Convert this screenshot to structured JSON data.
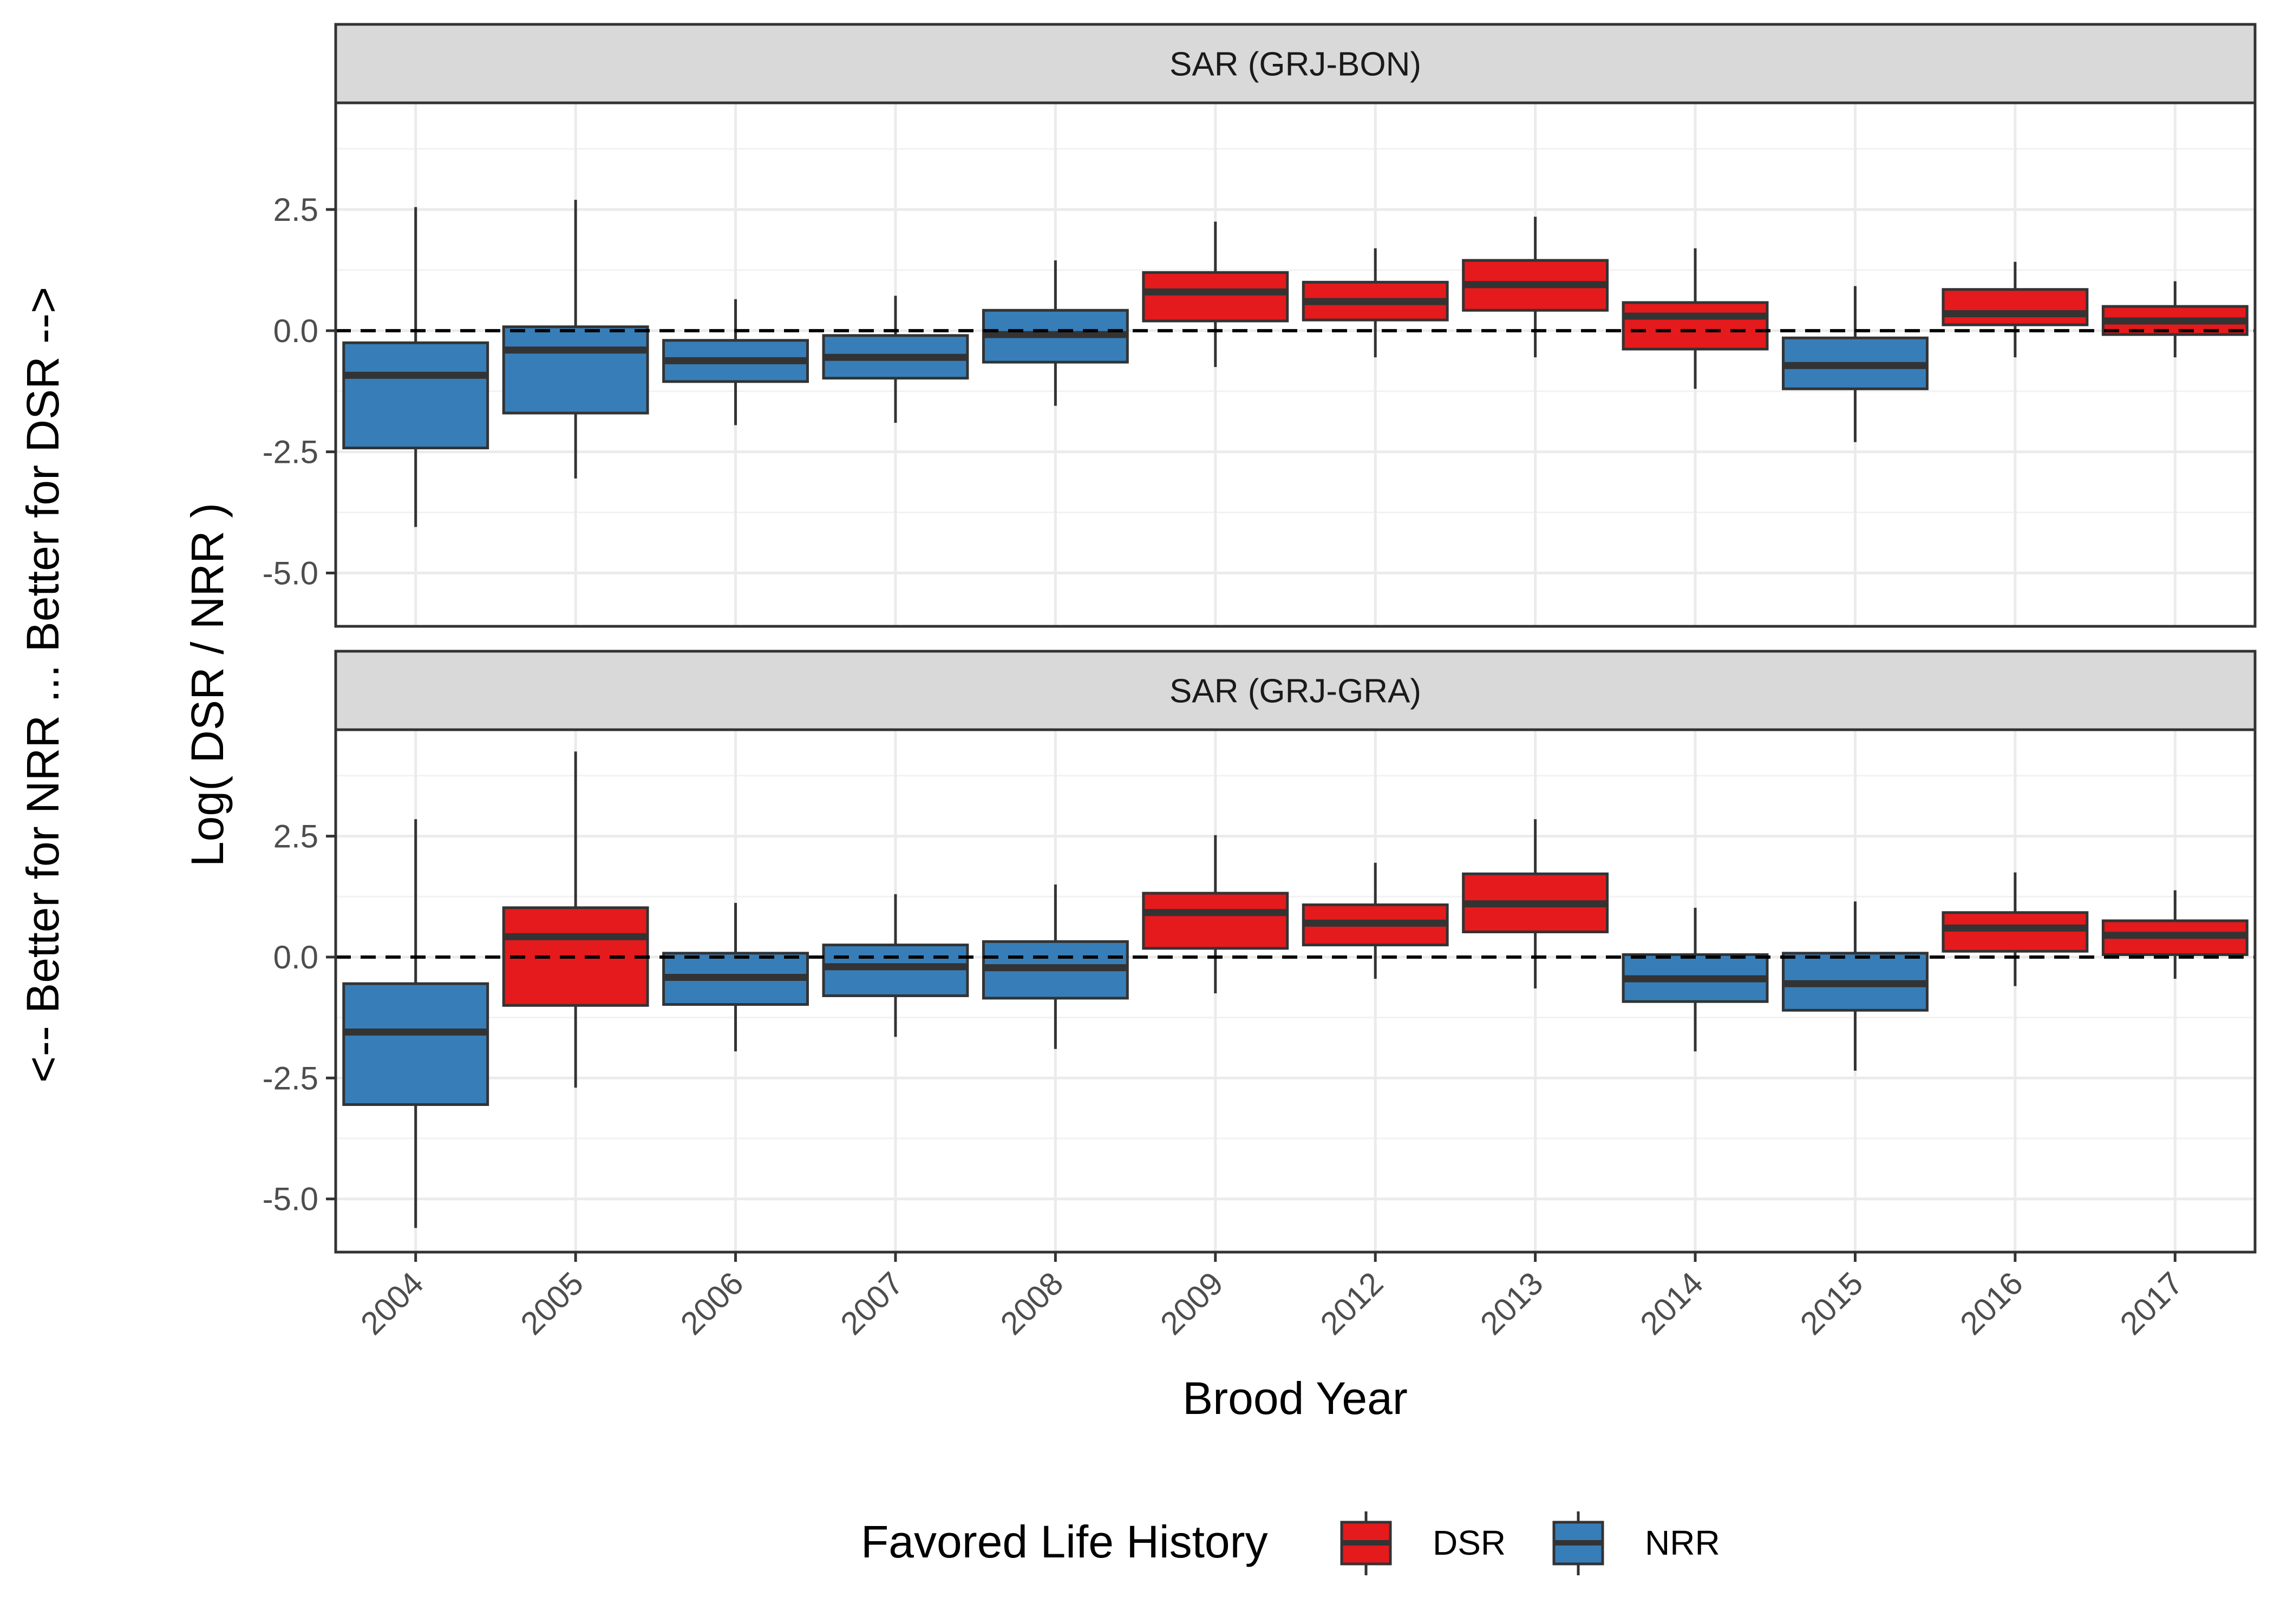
{
  "chart_data": {
    "type": "box",
    "xlabel": "Brood Year",
    "ylabel": "Log( DSR / NRR )",
    "secondary_ylabel": "<--  Better for NRR ... Better for DSR  -->",
    "categories": [
      "2004",
      "2005",
      "2006",
      "2007",
      "2008",
      "2009",
      "2012",
      "2013",
      "2014",
      "2015",
      "2016",
      "2017"
    ],
    "ylim": [
      -6.1,
      4.7
    ],
    "yticks": [
      2.5,
      0.0,
      -2.5,
      -5.0
    ],
    "ytick_labels": [
      "2.5",
      "0.0",
      "-2.5",
      "-5.0"
    ],
    "reference_line": 0,
    "grid": true,
    "legend": {
      "title": "Favored Life History",
      "position": "bottom",
      "entries": [
        {
          "label": "DSR",
          "color": "#E41A1C"
        },
        {
          "label": "NRR",
          "color": "#377EB8"
        }
      ]
    },
    "panels": [
      {
        "title": "SAR (GRJ-BON)",
        "boxes": [
          {
            "x": "2004",
            "low": -4.05,
            "q1": -2.42,
            "median": -0.92,
            "q3": -0.25,
            "high": 2.55,
            "favored": "NRR"
          },
          {
            "x": "2005",
            "low": -3.05,
            "q1": -1.7,
            "median": -0.4,
            "q3": 0.08,
            "high": 2.7,
            "favored": "NRR"
          },
          {
            "x": "2006",
            "low": -1.95,
            "q1": -1.05,
            "median": -0.62,
            "q3": -0.2,
            "high": 0.65,
            "favored": "NRR"
          },
          {
            "x": "2007",
            "low": -1.9,
            "q1": -0.98,
            "median": -0.55,
            "q3": -0.1,
            "high": 0.72,
            "favored": "NRR"
          },
          {
            "x": "2008",
            "low": -1.55,
            "q1": -0.65,
            "median": -0.08,
            "q3": 0.42,
            "high": 1.45,
            "favored": "NRR"
          },
          {
            "x": "2009",
            "low": -0.75,
            "q1": 0.2,
            "median": 0.8,
            "q3": 1.2,
            "high": 2.25,
            "favored": "DSR"
          },
          {
            "x": "2012",
            "low": -0.55,
            "q1": 0.22,
            "median": 0.6,
            "q3": 1.0,
            "high": 1.7,
            "favored": "DSR"
          },
          {
            "x": "2013",
            "low": -0.55,
            "q1": 0.42,
            "median": 0.95,
            "q3": 1.45,
            "high": 2.35,
            "favored": "DSR"
          },
          {
            "x": "2014",
            "low": -1.2,
            "q1": -0.38,
            "median": 0.3,
            "q3": 0.58,
            "high": 1.7,
            "favored": "DSR"
          },
          {
            "x": "2015",
            "low": -2.3,
            "q1": -1.2,
            "median": -0.72,
            "q3": -0.15,
            "high": 0.92,
            "favored": "NRR"
          },
          {
            "x": "2016",
            "low": -0.55,
            "q1": 0.12,
            "median": 0.35,
            "q3": 0.85,
            "high": 1.42,
            "favored": "DSR"
          },
          {
            "x": "2017",
            "low": -0.55,
            "q1": -0.08,
            "median": 0.2,
            "q3": 0.5,
            "high": 1.02,
            "favored": "DSR"
          }
        ]
      },
      {
        "title": "SAR (GRJ-GRA)",
        "boxes": [
          {
            "x": "2004",
            "low": -5.6,
            "q1": -3.05,
            "median": -1.55,
            "q3": -0.55,
            "high": 2.85,
            "favored": "NRR"
          },
          {
            "x": "2005",
            "low": -2.7,
            "q1": -1.0,
            "median": 0.42,
            "q3": 1.02,
            "high": 4.25,
            "favored": "DSR"
          },
          {
            "x": "2006",
            "low": -1.95,
            "q1": -0.98,
            "median": -0.42,
            "q3": 0.08,
            "high": 1.12,
            "favored": "NRR"
          },
          {
            "x": "2007",
            "low": -1.65,
            "q1": -0.8,
            "median": -0.2,
            "q3": 0.25,
            "high": 1.3,
            "favored": "NRR"
          },
          {
            "x": "2008",
            "low": -1.9,
            "q1": -0.85,
            "median": -0.22,
            "q3": 0.32,
            "high": 1.5,
            "favored": "NRR"
          },
          {
            "x": "2009",
            "low": -0.75,
            "q1": 0.18,
            "median": 0.92,
            "q3": 1.32,
            "high": 2.52,
            "favored": "DSR"
          },
          {
            "x": "2012",
            "low": -0.45,
            "q1": 0.25,
            "median": 0.7,
            "q3": 1.08,
            "high": 1.95,
            "favored": "DSR"
          },
          {
            "x": "2013",
            "low": -0.65,
            "q1": 0.52,
            "median": 1.1,
            "q3": 1.72,
            "high": 2.85,
            "favored": "DSR"
          },
          {
            "x": "2014",
            "low": -1.95,
            "q1": -0.92,
            "median": -0.45,
            "q3": 0.05,
            "high": 1.02,
            "favored": "NRR"
          },
          {
            "x": "2015",
            "low": -2.35,
            "q1": -1.1,
            "median": -0.55,
            "q3": 0.08,
            "high": 1.15,
            "favored": "NRR"
          },
          {
            "x": "2016",
            "low": -0.6,
            "q1": 0.12,
            "median": 0.6,
            "q3": 0.92,
            "high": 1.75,
            "favored": "DSR"
          },
          {
            "x": "2017",
            "low": -0.45,
            "q1": 0.05,
            "median": 0.45,
            "q3": 0.75,
            "high": 1.38,
            "favored": "DSR"
          }
        ]
      }
    ]
  }
}
